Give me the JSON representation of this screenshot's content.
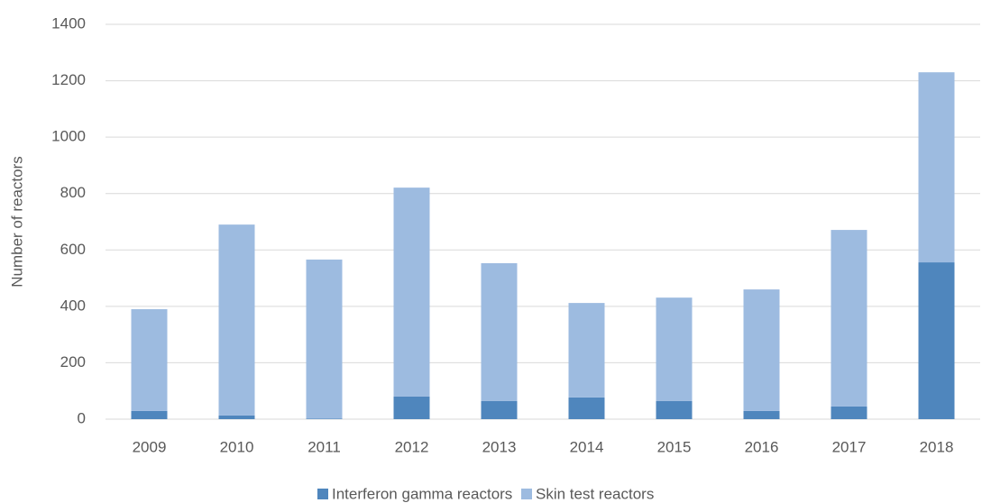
{
  "chart_data": {
    "type": "stacked_bar",
    "y_label": "Number of reactors",
    "categories": [
      "2009",
      "2010",
      "2011",
      "2012",
      "2013",
      "2014",
      "2015",
      "2016",
      "2017",
      "2018"
    ],
    "series": [
      {
        "name": "Interferon gamma reactors",
        "color": "#4f86bd",
        "values": [
          29,
          13,
          2,
          80,
          64,
          77,
          64,
          29,
          45,
          556
        ]
      },
      {
        "name": "Skin test reactors",
        "color": "#9dbbe0",
        "values": [
          361,
          677,
          564,
          741,
          489,
          335,
          367,
          431,
          626,
          674
        ]
      }
    ],
    "ylim": [
      0,
      1400
    ],
    "yticks": [
      0,
      200,
      400,
      600,
      800,
      1000,
      1200,
      1400
    ],
    "grid": true,
    "legend": "bottom"
  }
}
